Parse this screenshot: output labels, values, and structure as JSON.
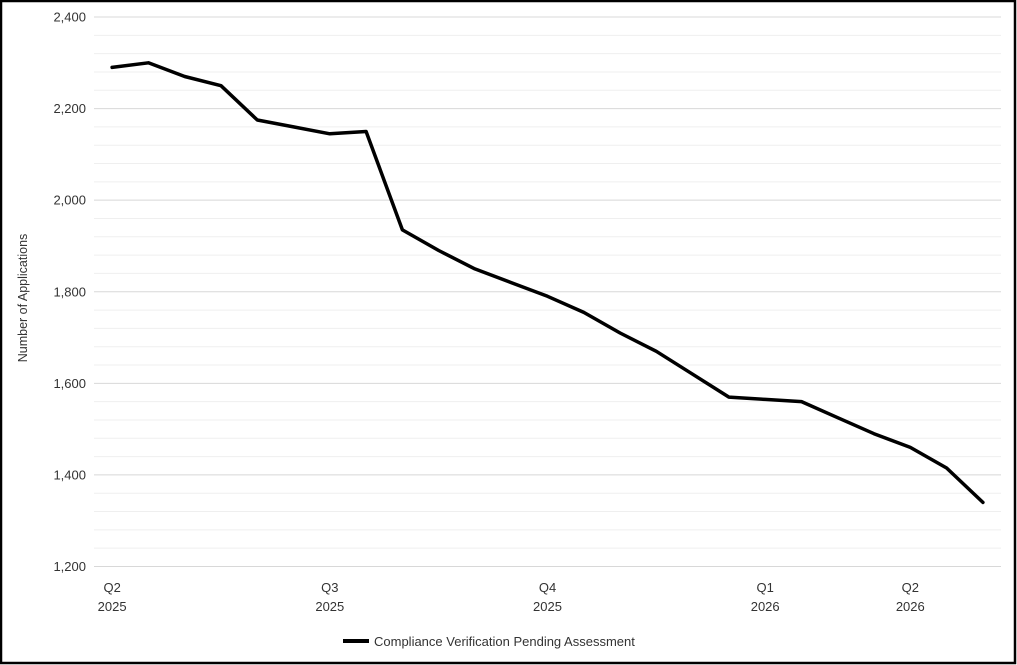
{
  "chart_data": {
    "type": "line",
    "title": "",
    "xlabel": "",
    "ylabel": "Number of Applications",
    "ylim": [
      1200,
      2400
    ],
    "y_major_step": 200,
    "y_minor_step": 40,
    "y_tick_labels": [
      "1,200",
      "1,400",
      "1,600",
      "1,800",
      "2,000",
      "2,200",
      "2,400"
    ],
    "grid": "horizontal",
    "legend_position": "bottom",
    "x_tick_groups": [
      {
        "line1": "Q2",
        "line2": "2025",
        "point_index": 0
      },
      {
        "line1": "Q3",
        "line2": "2025",
        "point_index": 6
      },
      {
        "line1": "Q4",
        "line2": "2025",
        "point_index": 12
      },
      {
        "line1": "Q1",
        "line2": "2026",
        "point_index": 18
      },
      {
        "line1": "Q2",
        "line2": "2026",
        "point_index": 22
      }
    ],
    "series": [
      {
        "name": "Compliance Verification Pending Assessment",
        "color": "#000000",
        "values": [
          2290,
          2300,
          2270,
          2250,
          2175,
          2160,
          2145,
          2150,
          1935,
          1890,
          1850,
          1820,
          1790,
          1755,
          1710,
          1670,
          1620,
          1570,
          1565,
          1560,
          1525,
          1490,
          1460,
          1415,
          1340
        ]
      }
    ]
  },
  "colors": {
    "series_line": "#000000",
    "grid_minor": "#efefef",
    "grid_major": "#d8d8d8",
    "frame_border": "#000000",
    "text": "#333333"
  }
}
